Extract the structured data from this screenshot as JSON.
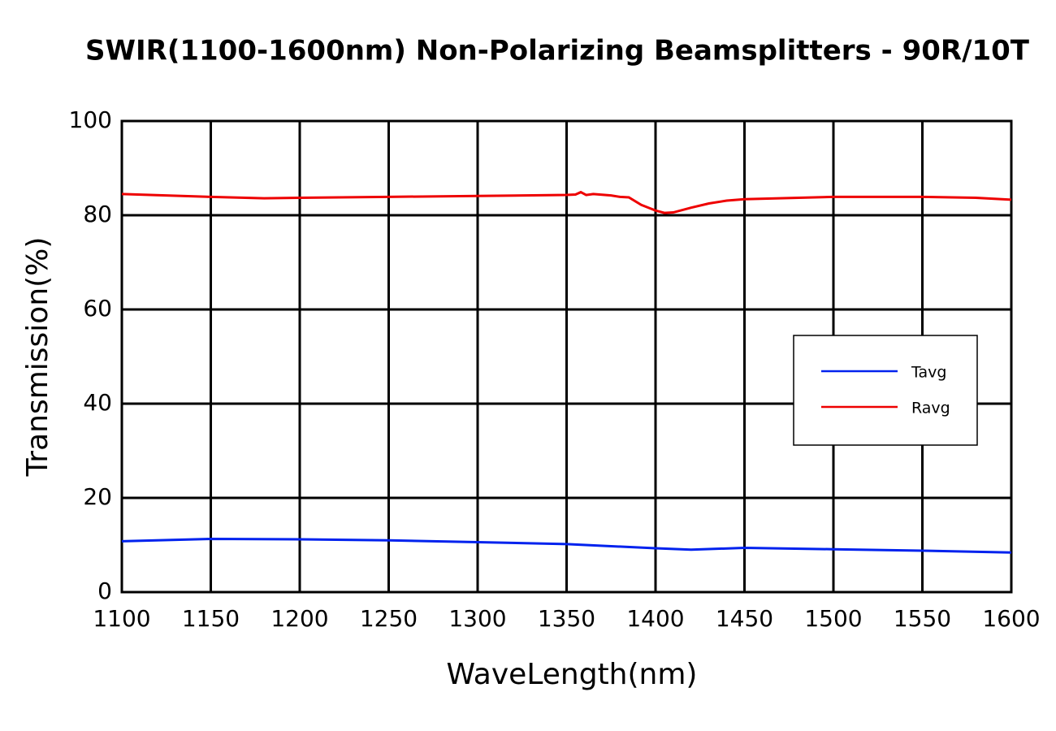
{
  "chart_data": {
    "type": "line",
    "title": "SWIR(1100-1600nm)  Non-Polarizing Beamsplitters - 90R/10T",
    "xlabel": "WaveLength(nm)",
    "ylabel": "Transmission(%)",
    "xlim": [
      1100,
      1600
    ],
    "ylim": [
      0,
      100
    ],
    "xticks": [
      1100,
      1150,
      1200,
      1250,
      1300,
      1350,
      1400,
      1450,
      1500,
      1550,
      1600
    ],
    "yticks": [
      0,
      20,
      40,
      60,
      80,
      100
    ],
    "grid": true,
    "legend": "right",
    "series": [
      {
        "name": "Tavg",
        "color": "#0022ee",
        "x": [
          1100,
          1150,
          1200,
          1250,
          1300,
          1350,
          1400,
          1420,
          1450,
          1500,
          1550,
          1600
        ],
        "values": [
          10.8,
          11.3,
          11.2,
          11.0,
          10.6,
          10.2,
          9.3,
          9.0,
          9.4,
          9.1,
          8.8,
          8.4
        ]
      },
      {
        "name": "Ravg",
        "color": "#ee0000",
        "x": [
          1100,
          1150,
          1180,
          1200,
          1250,
          1300,
          1350,
          1355,
          1358,
          1361,
          1365,
          1375,
          1380,
          1385,
          1392,
          1400,
          1405,
          1410,
          1420,
          1430,
          1440,
          1450,
          1500,
          1550,
          1580,
          1600
        ],
        "values": [
          84.5,
          83.9,
          83.6,
          83.7,
          83.9,
          84.1,
          84.3,
          84.4,
          84.9,
          84.3,
          84.5,
          84.2,
          83.9,
          83.8,
          82.2,
          81.0,
          80.5,
          80.6,
          81.6,
          82.5,
          83.1,
          83.4,
          83.9,
          83.9,
          83.7,
          83.3
        ]
      }
    ]
  }
}
